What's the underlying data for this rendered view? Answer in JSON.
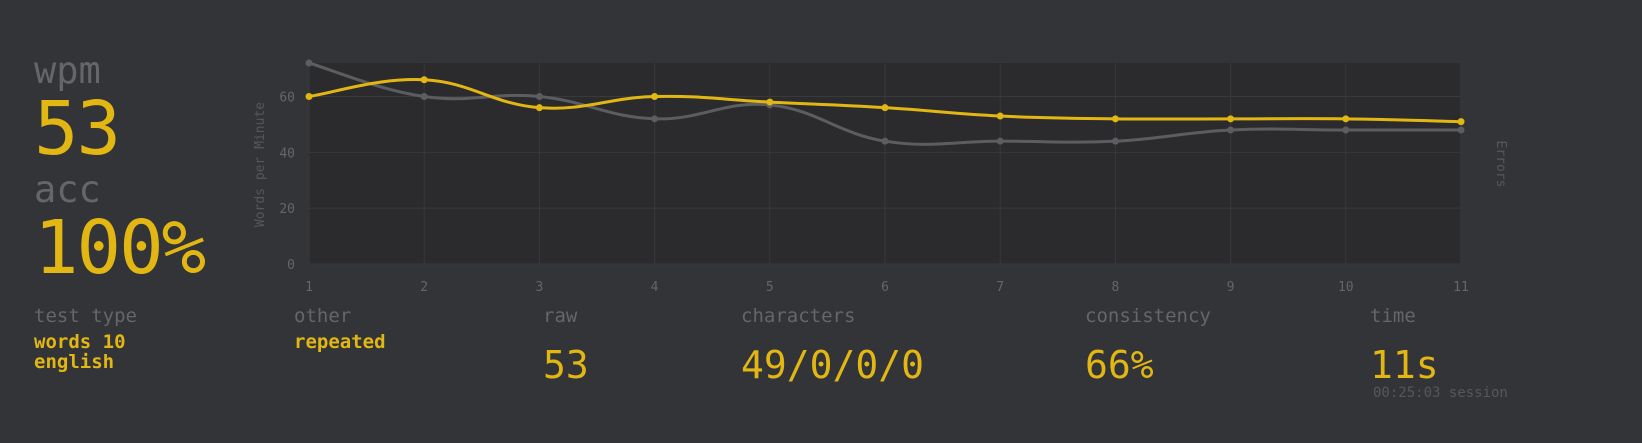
{
  "stats": {
    "wpm_label": "wpm",
    "wpm_value": "53",
    "acc_label": "acc",
    "acc_value": "100%"
  },
  "details": {
    "test_type_label": "test type",
    "test_type_line1": "words 10",
    "test_type_line2": "english",
    "other_label": "other",
    "other_value": "repeated",
    "raw_label": "raw",
    "raw_value": "53",
    "characters_label": "characters",
    "characters_value": "49/0/0/0",
    "consistency_label": "consistency",
    "consistency_value": "66%",
    "time_label": "time",
    "time_value": "11s",
    "session_text": "00:25:03 session"
  },
  "colors": {
    "background": "#323437",
    "plot_bg": "#2b2b2d",
    "accent": "#e2b714",
    "raw_line": "#5b5d60",
    "grid": "#38393b",
    "sub_text": "#646669"
  },
  "chart_data": {
    "type": "line",
    "x": [
      1,
      2,
      3,
      4,
      5,
      6,
      7,
      8,
      9,
      10,
      11
    ],
    "xlim": [
      1,
      11
    ],
    "ylim": [
      0,
      72
    ],
    "yticks": [
      0,
      20,
      40,
      60
    ],
    "ylabel": "Words per Minute",
    "y2label": "Errors",
    "grid": true,
    "legend": "none",
    "series": [
      {
        "key": "raw",
        "color": "#5b5d60",
        "values": [
          72,
          60,
          60,
          52,
          57,
          44,
          44,
          44,
          48,
          48,
          48
        ]
      },
      {
        "key": "wpm",
        "color": "#e2b714",
        "values": [
          60,
          66,
          56,
          60,
          58,
          56,
          53,
          52,
          52,
          52,
          51
        ]
      }
    ]
  }
}
